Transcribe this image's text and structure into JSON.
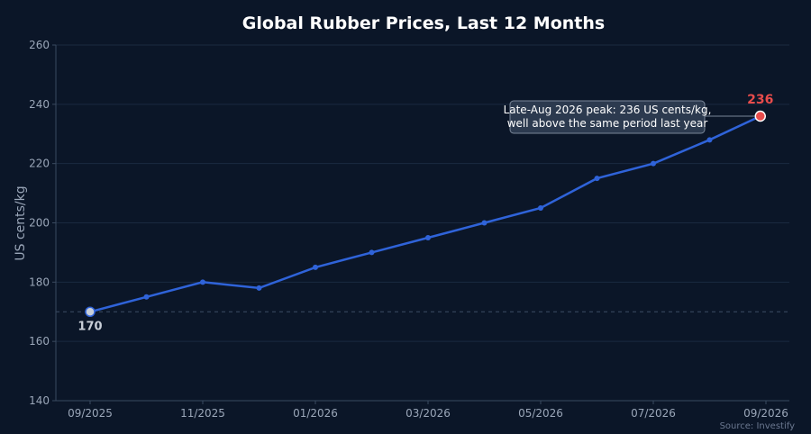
{
  "chart_data": {
    "type": "line",
    "title": "Global Rubber Prices, Last 12 Months",
    "ylabel": "US cents/kg",
    "xlabel": "",
    "ylim": [
      140,
      260
    ],
    "y_ticks": [
      140,
      160,
      180,
      200,
      220,
      240,
      260
    ],
    "x": [
      "09/2025",
      "10/2025",
      "11/2025",
      "12/2025",
      "01/2026",
      "02/2026",
      "03/2026",
      "04/2026",
      "05/2026",
      "06/2026",
      "07/2026",
      "08/2026",
      "08/2026"
    ],
    "x_positions": [
      0,
      1,
      2,
      3,
      4,
      5,
      6,
      7,
      8,
      9,
      10,
      11,
      11.9
    ],
    "x_tick_labels": [
      {
        "pos": 0,
        "label": "09/2025"
      },
      {
        "pos": 2,
        "label": "11/2025"
      },
      {
        "pos": 4,
        "label": "01/2026"
      },
      {
        "pos": 6,
        "label": "03/2026"
      },
      {
        "pos": 8,
        "label": "05/2026"
      },
      {
        "pos": 10,
        "label": "07/2026"
      },
      {
        "pos": 12,
        "label": "09/2026"
      }
    ],
    "values": [
      170,
      175,
      180,
      178,
      185,
      190,
      195,
      200,
      205,
      215,
      220,
      228,
      236
    ],
    "series_color": "#2f63d9",
    "grid": true,
    "reference_line": 170,
    "start_label": "170",
    "end_label": "236",
    "annotation": {
      "line1": "Late-Aug 2026 peak: 236 US cents/kg,",
      "line2": "well above the same period last year"
    },
    "source": "Source: Investify",
    "colors": {
      "background": "#0b1628",
      "highlight_end": "#e84c4c",
      "start_marker": "#c9cfd8"
    }
  }
}
